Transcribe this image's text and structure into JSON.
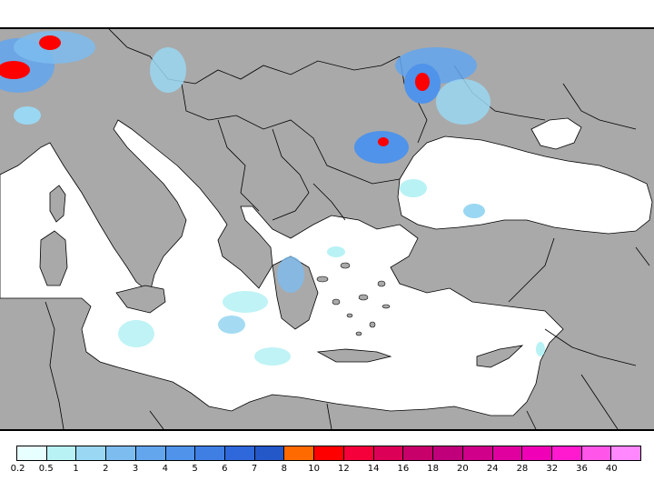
{
  "map": {
    "land_color": "#a9a9a9",
    "sea_color": "#ffffff",
    "border_color": "#000000"
  },
  "legend": {
    "labels": [
      "0.2",
      "0.5",
      "1",
      "2",
      "3",
      "4",
      "5",
      "6",
      "7",
      "8",
      "10",
      "12",
      "14",
      "16",
      "18",
      "20",
      "24",
      "28",
      "32",
      "36",
      "40"
    ],
    "colors": [
      "#e8ffff",
      "#b8f2f5",
      "#9ad7f2",
      "#7dbcef",
      "#63a6ee",
      "#4f93ea",
      "#3f7fe4",
      "#2f68db",
      "#2457c8",
      "#ff6a00",
      "#ff0000",
      "#f5003a",
      "#dc0057",
      "#c8006a",
      "#c0007a",
      "#d0008a",
      "#e000a0",
      "#f000b6",
      "#ff1ad0",
      "#ff55e8",
      "#ff88ff"
    ]
  }
}
